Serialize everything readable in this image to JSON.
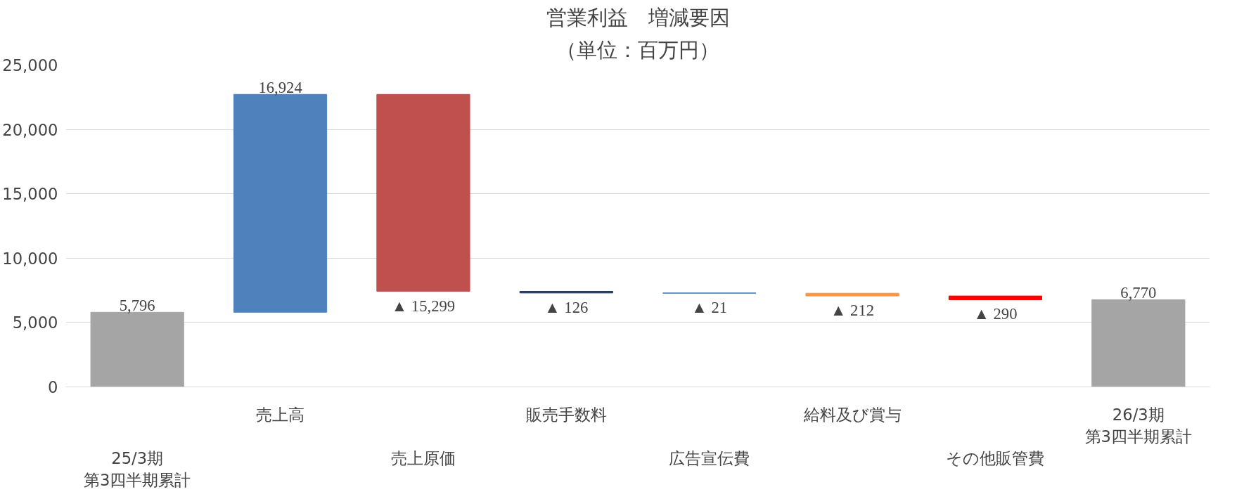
{
  "chart_data": {
    "type": "bar",
    "title": "営業利益　増減要因",
    "subtitle": "（単位：百万円）",
    "categories": [
      "25/3期第3四半期累計",
      "売上高",
      "売上原価",
      "販売手数料",
      "広告宣伝費",
      "給料及び賞与",
      "その他販管費",
      "26/3期第3四半期累計"
    ],
    "values": [
      5796,
      16924,
      -15299,
      -126,
      -21,
      -212,
      -290,
      6770
    ],
    "base": [
      0,
      5796,
      22720,
      7421,
      7295,
      7274,
      7062,
      0
    ],
    "colors": [
      "#a5a5a5",
      "#4f81bd",
      "#c0504d",
      "#1f3864",
      "#4f81bd",
      "#f79646",
      "#ff0000",
      "#a5a5a5"
    ],
    "value_labels": [
      "5,796",
      "16,924",
      "▲ 15,299",
      "▲ 126",
      "▲ 21",
      "▲ 212",
      "▲ 290",
      "6,770"
    ],
    "ylim": [
      0,
      25000
    ],
    "yticks": [
      0,
      {
        "value": 5000,
        "label": "5,000"
      },
      {
        "value": 10000,
        "label": "10,000"
      },
      {
        "value": 15000,
        "label": "15,000"
      },
      {
        "value": 20000,
        "label": "20,000"
      },
      {
        "value": 25000,
        "label": "25,000"
      }
    ],
    "grid": "y"
  }
}
